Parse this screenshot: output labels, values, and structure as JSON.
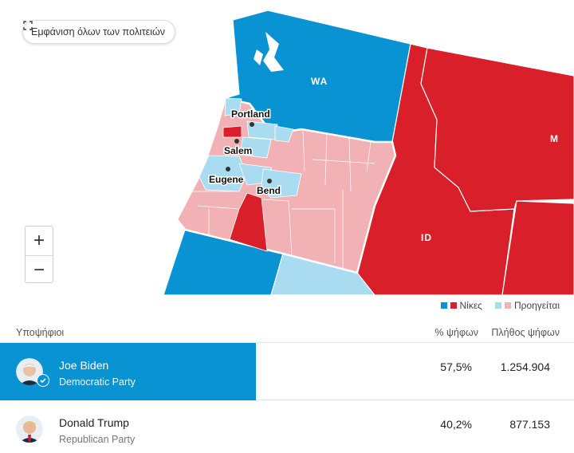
{
  "map": {
    "show_all_label": "Εμφάνιση όλων των πολιτειών",
    "zoom_in": "+",
    "zoom_out": "−",
    "states": {
      "wa": "WA",
      "id": "ID",
      "mt": "M"
    },
    "cities": [
      "Portland",
      "Salem",
      "Eugene",
      "Bend"
    ],
    "colors": {
      "dem_win": "#0993d3",
      "rep_win": "#d81f2a",
      "dem_lead": "#a9dcf0",
      "rep_lead": "#f2b1b5"
    }
  },
  "legend": {
    "wins": "Νίκες",
    "leading": "Προηγείται"
  },
  "table": {
    "col_candidates": "Υποψήφιοι",
    "col_pct": "% ψήφων",
    "col_votes": "Πλήθος ψήφων"
  },
  "candidates": [
    {
      "name": "Joe Biden",
      "party": "Democratic Party",
      "pct": "57,5%",
      "votes": "1.254.904",
      "pct_value": 57.5,
      "winner": true,
      "color": "#0993d3"
    },
    {
      "name": "Donald Trump",
      "party": "Republican Party",
      "pct": "40,2%",
      "votes": "877.153",
      "pct_value": 40.2,
      "winner": false,
      "color": "#d81f2a"
    }
  ]
}
